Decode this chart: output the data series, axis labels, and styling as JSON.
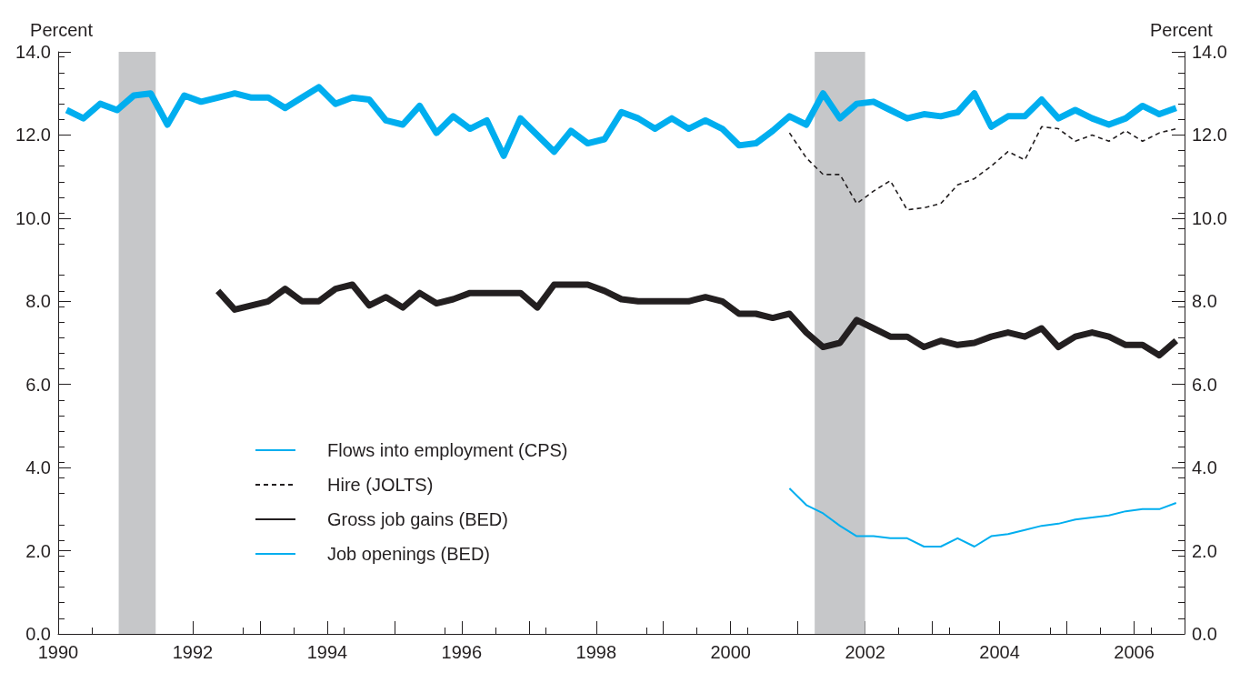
{
  "chart_data": {
    "type": "line",
    "ylabel": "Percent",
    "y2label": "Percent",
    "x": [
      1990.125,
      1990.375,
      1990.625,
      1990.875,
      1991.125,
      1991.375,
      1991.625,
      1991.875,
      1992.125,
      1992.375,
      1992.625,
      1992.875,
      1993.125,
      1993.375,
      1993.625,
      1993.875,
      1994.125,
      1994.375,
      1994.625,
      1994.875,
      1995.125,
      1995.375,
      1995.625,
      1995.875,
      1996.125,
      1996.375,
      1996.625,
      1996.875,
      1997.125,
      1997.375,
      1997.625,
      1997.875,
      1998.125,
      1998.375,
      1998.625,
      1998.875,
      1999.125,
      1999.375,
      1999.625,
      1999.875,
      2000.125,
      2000.375,
      2000.625,
      2000.875,
      2001.125,
      2001.375,
      2001.625,
      2001.875,
      2002.125,
      2002.375,
      2002.625,
      2002.875,
      2003.125,
      2003.375,
      2003.625,
      2003.875,
      2004.125,
      2004.375,
      2004.625,
      2004.875,
      2005.125,
      2005.375,
      2005.625,
      2005.875,
      2006.125,
      2006.375,
      2006.625
    ],
    "series": [
      {
        "name": "Flows into employment (CPS)",
        "color": "#00aeef",
        "values": [
          12.6,
          12.4,
          12.75,
          12.6,
          12.95,
          13.0,
          12.25,
          12.95,
          12.8,
          12.9,
          13.0,
          12.9,
          12.9,
          12.65,
          12.9,
          13.15,
          12.75,
          12.9,
          12.85,
          12.35,
          12.25,
          12.7,
          12.05,
          12.45,
          12.15,
          12.35,
          11.5,
          12.4,
          12.0,
          11.6,
          12.1,
          11.8,
          11.9,
          12.55,
          12.4,
          12.15,
          12.4,
          12.15,
          12.35,
          12.15,
          11.75,
          11.8,
          12.1,
          12.45,
          12.25,
          13.0,
          12.4,
          12.75,
          12.8,
          12.6,
          12.4,
          12.5,
          12.45,
          12.55,
          13.0,
          12.2,
          12.45,
          12.45,
          12.85,
          12.4,
          12.6,
          12.4,
          12.25,
          12.4,
          12.7,
          12.5,
          12.65
        ]
      },
      {
        "name": "Hire (JOLTS)",
        "color": "#231f20",
        "line_style": "dashed",
        "values": [
          null,
          null,
          null,
          null,
          null,
          null,
          null,
          null,
          null,
          null,
          null,
          null,
          null,
          null,
          null,
          null,
          null,
          null,
          null,
          null,
          null,
          null,
          null,
          null,
          null,
          null,
          null,
          null,
          null,
          null,
          null,
          null,
          null,
          null,
          null,
          null,
          null,
          null,
          null,
          null,
          null,
          null,
          null,
          12.05,
          11.45,
          11.05,
          11.05,
          10.35,
          10.65,
          10.9,
          10.2,
          10.25,
          10.35,
          10.8,
          10.95,
          11.25,
          11.6,
          11.4,
          12.2,
          12.15,
          11.85,
          12.0,
          11.85,
          12.1,
          11.85,
          12.05,
          12.15
        ]
      },
      {
        "name": "Gross job gains (BED)",
        "color": "#231f20",
        "values": [
          null,
          null,
          null,
          null,
          null,
          null,
          null,
          null,
          null,
          8.25,
          7.8,
          7.9,
          8.0,
          8.3,
          8.0,
          8.0,
          8.3,
          8.4,
          7.9,
          8.1,
          7.85,
          8.2,
          7.95,
          8.05,
          8.2,
          8.2,
          8.2,
          8.2,
          7.85,
          8.4,
          8.4,
          8.4,
          8.25,
          8.05,
          8.0,
          8.0,
          8.0,
          8.0,
          8.1,
          8.0,
          7.7,
          7.7,
          7.6,
          7.7,
          7.25,
          6.9,
          7.0,
          7.55,
          7.35,
          7.15,
          7.15,
          6.9,
          7.05,
          6.95,
          7.0,
          7.15,
          7.25,
          7.15,
          7.35,
          6.9,
          7.15,
          7.25,
          7.15,
          6.95,
          6.95,
          6.7,
          7.05
        ]
      },
      {
        "name": "Job openings (BED)",
        "color": "#00aeef",
        "values": [
          null,
          null,
          null,
          null,
          null,
          null,
          null,
          null,
          null,
          null,
          null,
          null,
          null,
          null,
          null,
          null,
          null,
          null,
          null,
          null,
          null,
          null,
          null,
          null,
          null,
          null,
          null,
          null,
          null,
          null,
          null,
          null,
          null,
          null,
          null,
          null,
          null,
          null,
          null,
          null,
          null,
          null,
          null,
          3.5,
          3.1,
          2.9,
          2.6,
          2.35,
          2.35,
          2.3,
          2.3,
          2.1,
          2.1,
          2.3,
          2.1,
          2.35,
          2.4,
          2.5,
          2.6,
          2.65,
          2.75,
          2.8,
          2.85,
          2.95,
          3.0,
          3.0,
          3.15
        ]
      }
    ],
    "xlim": [
      1990,
      2006.75
    ],
    "xticks": [
      1990,
      {
        "value": 1991,
        "label": null
      },
      1992,
      {
        "value": 1993,
        "label": null
      },
      1994,
      {
        "value": 1995,
        "label": null
      },
      1996,
      {
        "value": 1997,
        "label": null
      },
      1998,
      {
        "value": 1999,
        "label": null
      },
      2000,
      {
        "value": 2001,
        "label": null
      },
      2002,
      {
        "value": 2003,
        "label": null
      },
      2004,
      {
        "value": 2005,
        "label": null
      },
      2006
    ],
    "ylim": [
      0,
      14
    ],
    "yticks": [
      {
        "value": 0,
        "label": "0.0"
      },
      {
        "value": 2,
        "label": "2.0"
      },
      {
        "value": 4,
        "label": "4.0"
      },
      {
        "value": 6,
        "label": "6.0"
      },
      {
        "value": 8,
        "label": "8.0"
      },
      {
        "value": 10,
        "label": "10.0"
      },
      {
        "value": 12,
        "label": "12.0"
      },
      {
        "value": 14,
        "label": "14.0"
      }
    ],
    "y2lim": [
      0,
      14
    ],
    "y2ticks": [
      {
        "value": 0,
        "label": "0.0"
      },
      {
        "value": 2,
        "label": "2.0"
      },
      {
        "value": 4,
        "label": "4.0"
      },
      {
        "value": 6,
        "label": "6.0"
      },
      {
        "value": 8,
        "label": "8.0"
      },
      {
        "value": 10,
        "label": "10.0"
      },
      {
        "value": 12,
        "label": "12.0"
      },
      {
        "value": 14,
        "label": "14.0"
      }
    ],
    "bands": [
      {
        "axis": "x",
        "from": 1990.9,
        "to": 1991.45,
        "color": "#c6c7c9"
      },
      {
        "axis": "x",
        "from": 2001.25,
        "to": 2002.0,
        "color": "#c6c7c9"
      }
    ],
    "legend": "bottom left",
    "grid": false,
    "marker": "none"
  }
}
